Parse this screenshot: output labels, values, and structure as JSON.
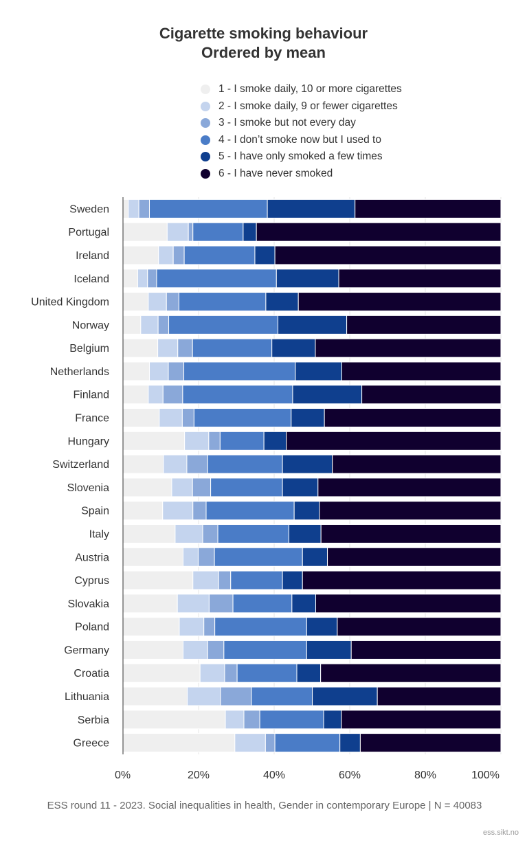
{
  "title_line1": "Cigarette smoking behaviour",
  "title_line2": "Ordered by mean",
  "footer": "ESS round 11 - 2023. Social inequalities in health, Gender in contemporary Europe | N = 40083",
  "credit": "ess.sikt.no",
  "chart_data": {
    "type": "bar",
    "orientation": "horizontal",
    "stacked": true,
    "normalized": true,
    "title": "Cigarette smoking behaviour",
    "subtitle": "Ordered by mean",
    "legend_position": "top",
    "grid": true,
    "xlim": [
      0,
      100
    ],
    "x_ticks": [
      "0%",
      "20%",
      "40%",
      "60%",
      "80%",
      "100%"
    ],
    "categories": [
      "Sweden",
      "Portugal",
      "Ireland",
      "Iceland",
      "United Kingdom",
      "Norway",
      "Belgium",
      "Netherlands",
      "Finland",
      "France",
      "Hungary",
      "Switzerland",
      "Slovenia",
      "Spain",
      "Italy",
      "Austria",
      "Cyprus",
      "Slovakia",
      "Poland",
      "Germany",
      "Croatia",
      "Lithuania",
      "Serbia",
      "Greece"
    ],
    "series": [
      {
        "name": "1 - I smoke daily, 10 or more cigarettes",
        "color": "#efefef",
        "values": [
          1.4,
          11.7,
          9.4,
          3.9,
          6.7,
          4.7,
          9.2,
          7.0,
          6.7,
          9.6,
          16.3,
          10.7,
          12.9,
          10.5,
          13.8,
          15.9,
          18.5,
          14.4,
          14.9,
          15.9,
          20.4,
          17.0,
          27.1,
          29.6
        ]
      },
      {
        "name": "2 - I smoke daily, 9 or fewer cigarettes",
        "color": "#c4d4ee",
        "values": [
          2.8,
          5.6,
          3.9,
          2.6,
          4.8,
          4.6,
          5.3,
          5.0,
          3.9,
          6.1,
          6.4,
          6.2,
          5.5,
          8.0,
          7.3,
          4.0,
          6.8,
          8.4,
          6.5,
          6.5,
          6.5,
          8.8,
          4.9,
          8.1
        ]
      },
      {
        "name": "3 - I smoke but not every day",
        "color": "#8aa8d9",
        "values": [
          2.8,
          1.2,
          2.9,
          2.4,
          3.3,
          2.8,
          3.9,
          4.1,
          5.2,
          3.1,
          3.0,
          5.5,
          4.8,
          3.5,
          4.0,
          4.3,
          3.2,
          6.3,
          2.9,
          4.3,
          3.3,
          8.2,
          4.2,
          2.5
        ]
      },
      {
        "name": "4 - I don’t smoke now but I used to",
        "color": "#4a7cc7",
        "values": [
          31.2,
          13.3,
          18.7,
          31.7,
          23.0,
          28.9,
          21.0,
          29.5,
          29.1,
          25.7,
          11.6,
          19.8,
          19.0,
          23.3,
          18.8,
          23.3,
          13.7,
          15.6,
          24.3,
          21.9,
          15.8,
          16.1,
          16.9,
          17.2
        ]
      },
      {
        "name": "5 - I have only smoked a few times",
        "color": "#0f3f8e",
        "values": [
          23.2,
          3.5,
          5.3,
          16.5,
          8.6,
          18.2,
          11.5,
          12.3,
          18.3,
          8.8,
          5.9,
          13.2,
          9.4,
          6.7,
          8.5,
          6.6,
          5.3,
          6.3,
          8.1,
          11.8,
          6.3,
          17.2,
          4.7,
          5.4
        ]
      },
      {
        "name": "6 - I have never smoked",
        "color": "#10002f",
        "values": [
          38.6,
          64.7,
          59.8,
          42.9,
          53.6,
          40.8,
          49.1,
          42.1,
          36.8,
          46.7,
          56.8,
          44.6,
          48.4,
          48.0,
          47.6,
          45.9,
          52.5,
          49.0,
          43.3,
          39.6,
          47.7,
          32.7,
          42.2,
          37.2
        ]
      }
    ]
  }
}
